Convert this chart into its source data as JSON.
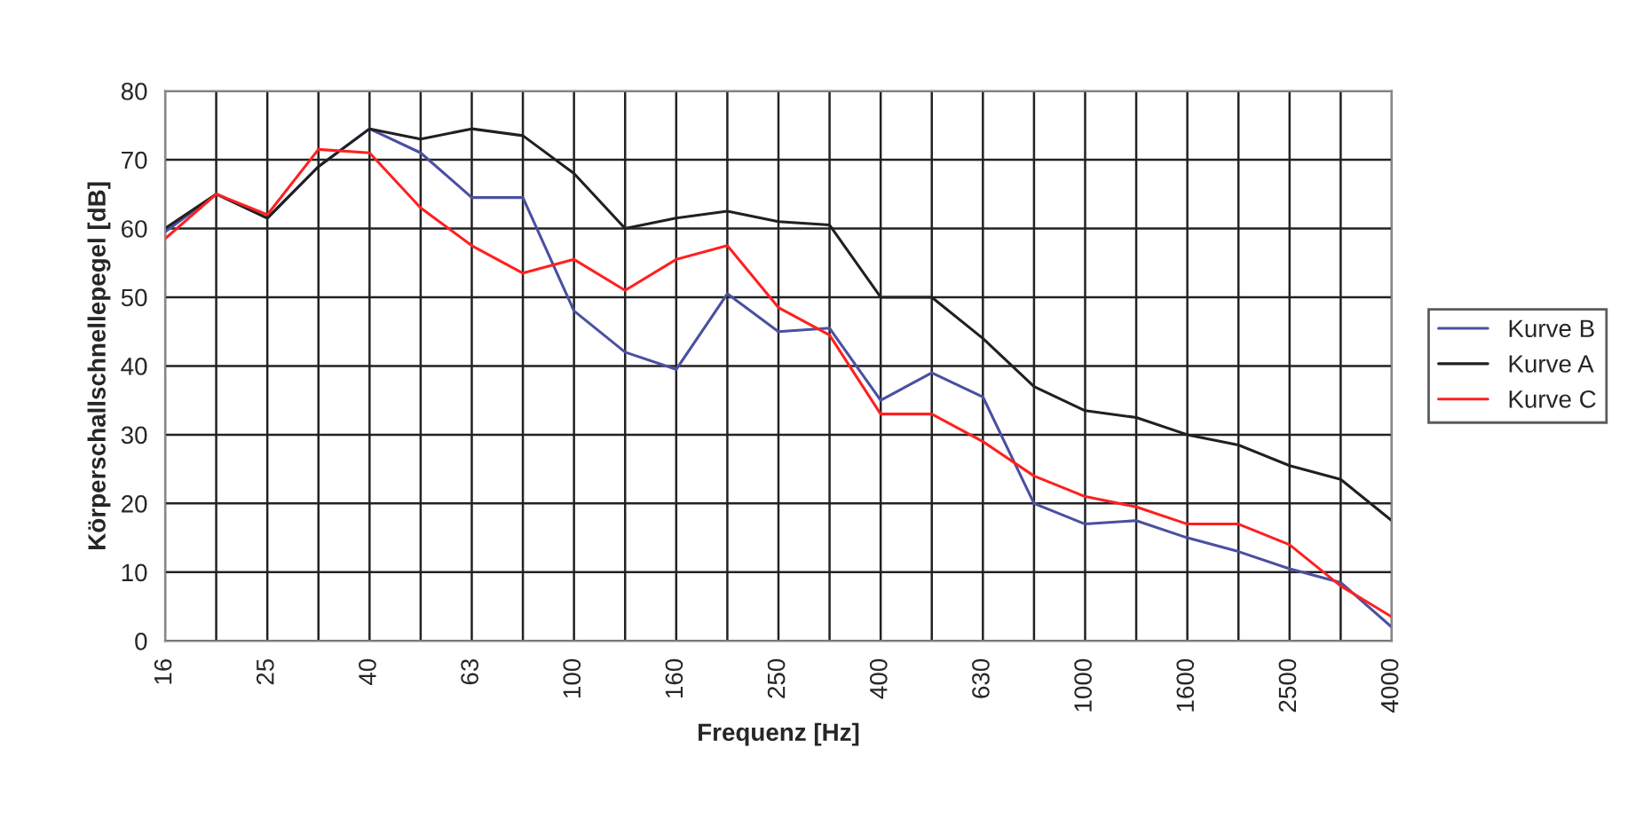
{
  "chart_data": {
    "type": "line",
    "xlabel": "Frequenz [Hz]",
    "ylabel": "Körperschallschnellepegel [dB]",
    "categories": [
      "16",
      null,
      "25",
      null,
      "40",
      null,
      "63",
      null,
      "100",
      null,
      "160",
      null,
      "250",
      null,
      "400",
      null,
      "630",
      null,
      "1000",
      null,
      "1600",
      null,
      "2500",
      null,
      "4000"
    ],
    "ylim": [
      0,
      80
    ],
    "yticks": [
      0,
      10,
      20,
      30,
      40,
      50,
      60,
      70,
      80
    ],
    "grid": true,
    "legend": "right",
    "marker": "none",
    "line_style": "solid",
    "series": [
      {
        "name": "Kurve B",
        "color": "#4a50a0",
        "values": [
          59.5,
          65,
          61.5,
          69,
          74.5,
          71,
          64.5,
          64.5,
          48,
          42,
          39.5,
          50.5,
          45,
          45.5,
          35,
          39,
          35.5,
          20,
          17,
          17.5,
          15,
          13,
          10.5,
          8.5,
          2
        ]
      },
      {
        "name": "Kurve A",
        "color": "#202020",
        "values": [
          60,
          65,
          61.5,
          69,
          74.5,
          73,
          74.5,
          73.5,
          68,
          60,
          61.5,
          62.5,
          61,
          60.5,
          50,
          50,
          44,
          37,
          33.5,
          32.5,
          30,
          28.5,
          25.5,
          23.5,
          17.5
        ]
      },
      {
        "name": "Kurve C",
        "color": "#ff2020",
        "values": [
          58.5,
          65,
          62,
          71.5,
          71,
          63,
          57.5,
          53.5,
          55.5,
          51,
          55.5,
          57.5,
          48.5,
          44.5,
          33,
          33,
          29,
          24,
          21,
          19.5,
          17,
          17,
          14,
          8,
          3.5
        ]
      }
    ]
  }
}
